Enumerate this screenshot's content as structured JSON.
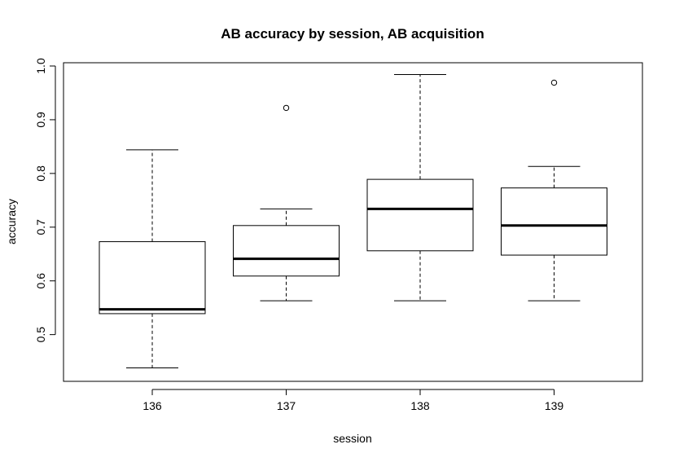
{
  "chart_data": {
    "type": "boxplot",
    "title": "AB accuracy by session, AB acquisition",
    "xlabel": "session",
    "ylabel": "accuracy",
    "categories": [
      "136",
      "137",
      "138",
      "139"
    ],
    "ylim": [
      0.413,
      1.0
    ],
    "yticks": [
      0.5,
      0.6,
      0.7,
      0.8,
      0.9,
      1.0
    ],
    "ytick_labels": [
      "0.5",
      "0.6",
      "0.7",
      "0.8",
      "0.9",
      "1.0"
    ],
    "boxes": [
      {
        "category": "136",
        "whisker_low": 0.438,
        "q1": 0.539,
        "median": 0.547,
        "q3": 0.673,
        "whisker_high": 0.844,
        "outliers": []
      },
      {
        "category": "137",
        "whisker_low": 0.563,
        "q1": 0.609,
        "median": 0.641,
        "q3": 0.703,
        "whisker_high": 0.734,
        "outliers": [
          0.922
        ]
      },
      {
        "category": "138",
        "whisker_low": 0.563,
        "q1": 0.656,
        "median": 0.734,
        "q3": 0.789,
        "whisker_high": 0.984,
        "outliers": []
      },
      {
        "category": "139",
        "whisker_low": 0.563,
        "q1": 0.648,
        "median": 0.703,
        "q3": 0.773,
        "whisker_high": 0.813,
        "outliers": [
          0.969
        ]
      }
    ],
    "grid": false,
    "legend": "none"
  }
}
